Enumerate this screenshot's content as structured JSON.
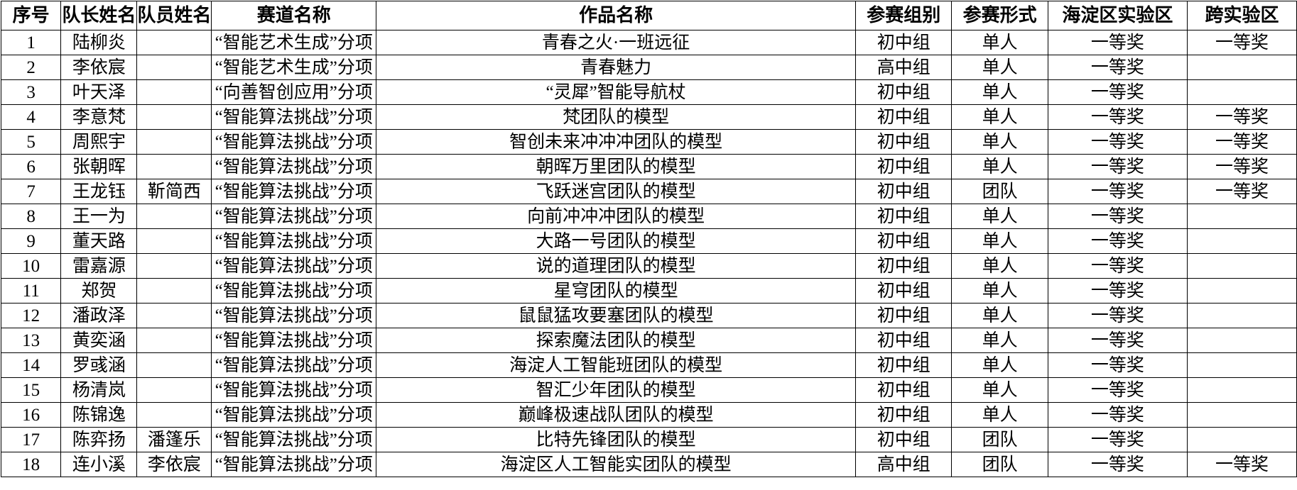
{
  "table": {
    "headers": [
      "序号",
      "队长姓名",
      "队员姓名",
      "赛道名称",
      "作品名称",
      "参赛组别",
      "参赛形式",
      "海淀区实验区",
      "跨实验区"
    ],
    "rows": [
      [
        "1",
        "陆柳炎",
        "",
        "“智能艺术生成”分项",
        "青春之火·一班远征",
        "初中组",
        "单人",
        "一等奖",
        "一等奖"
      ],
      [
        "2",
        "李依宸",
        "",
        "“智能艺术生成”分项",
        "青春魅力",
        "高中组",
        "单人",
        "一等奖",
        ""
      ],
      [
        "3",
        "叶天泽",
        "",
        "“向善智创应用”分项",
        "“灵犀”智能导航杖",
        "初中组",
        "单人",
        "一等奖",
        ""
      ],
      [
        "4",
        "李意梵",
        "",
        "“智能算法挑战”分项",
        "梵团队的模型",
        "初中组",
        "单人",
        "一等奖",
        "一等奖"
      ],
      [
        "5",
        "周熙宇",
        "",
        "“智能算法挑战”分项",
        "智创未来冲冲冲团队的模型",
        "初中组",
        "单人",
        "一等奖",
        "一等奖"
      ],
      [
        "6",
        "张朝晖",
        "",
        "“智能算法挑战”分项",
        "朝晖万里团队的模型",
        "初中组",
        "单人",
        "一等奖",
        "一等奖"
      ],
      [
        "7",
        "王龙钰",
        "靳简西",
        "“智能算法挑战”分项",
        "飞跃迷宫团队的模型",
        "初中组",
        "团队",
        "一等奖",
        "一等奖"
      ],
      [
        "8",
        "王一为",
        "",
        "“智能算法挑战”分项",
        "向前冲冲冲团队的模型",
        "初中组",
        "单人",
        "一等奖",
        ""
      ],
      [
        "9",
        "董天路",
        "",
        "“智能算法挑战”分项",
        "大路一号团队的模型",
        "初中组",
        "单人",
        "一等奖",
        ""
      ],
      [
        "10",
        "雷嘉源",
        "",
        "“智能算法挑战”分项",
        "说的道理团队的模型",
        "初中组",
        "单人",
        "一等奖",
        ""
      ],
      [
        "11",
        "郑贺",
        "",
        "“智能算法挑战”分项",
        "星穹团队的模型",
        "初中组",
        "单人",
        "一等奖",
        ""
      ],
      [
        "12",
        "潘政泽",
        "",
        "“智能算法挑战”分项",
        "鼠鼠猛攻要塞团队的模型",
        "初中组",
        "单人",
        "一等奖",
        ""
      ],
      [
        "13",
        "黄奕涵",
        "",
        "“智能算法挑战”分项",
        "探索魔法团队的模型",
        "初中组",
        "单人",
        "一等奖",
        ""
      ],
      [
        "14",
        "罗彧涵",
        "",
        "“智能算法挑战”分项",
        "海淀人工智能班团队的模型",
        "初中组",
        "单人",
        "一等奖",
        ""
      ],
      [
        "15",
        "杨清岚",
        "",
        "“智能算法挑战”分项",
        "智汇少年团队的模型",
        "初中组",
        "单人",
        "一等奖",
        ""
      ],
      [
        "16",
        "陈锦逸",
        "",
        "“智能算法挑战”分项",
        "巅峰极速战队团队的模型",
        "初中组",
        "单人",
        "一等奖",
        ""
      ],
      [
        "17",
        "陈弈扬",
        "潘篷乐",
        "“智能算法挑战”分项",
        "比特先锋团队的模型",
        "初中组",
        "团队",
        "一等奖",
        ""
      ],
      [
        "18",
        "连小溪",
        "李依宸",
        "“智能算法挑战”分项",
        "海淀区人工智能实团队的模型",
        "高中组",
        "团队",
        "一等奖",
        "一等奖"
      ]
    ]
  }
}
